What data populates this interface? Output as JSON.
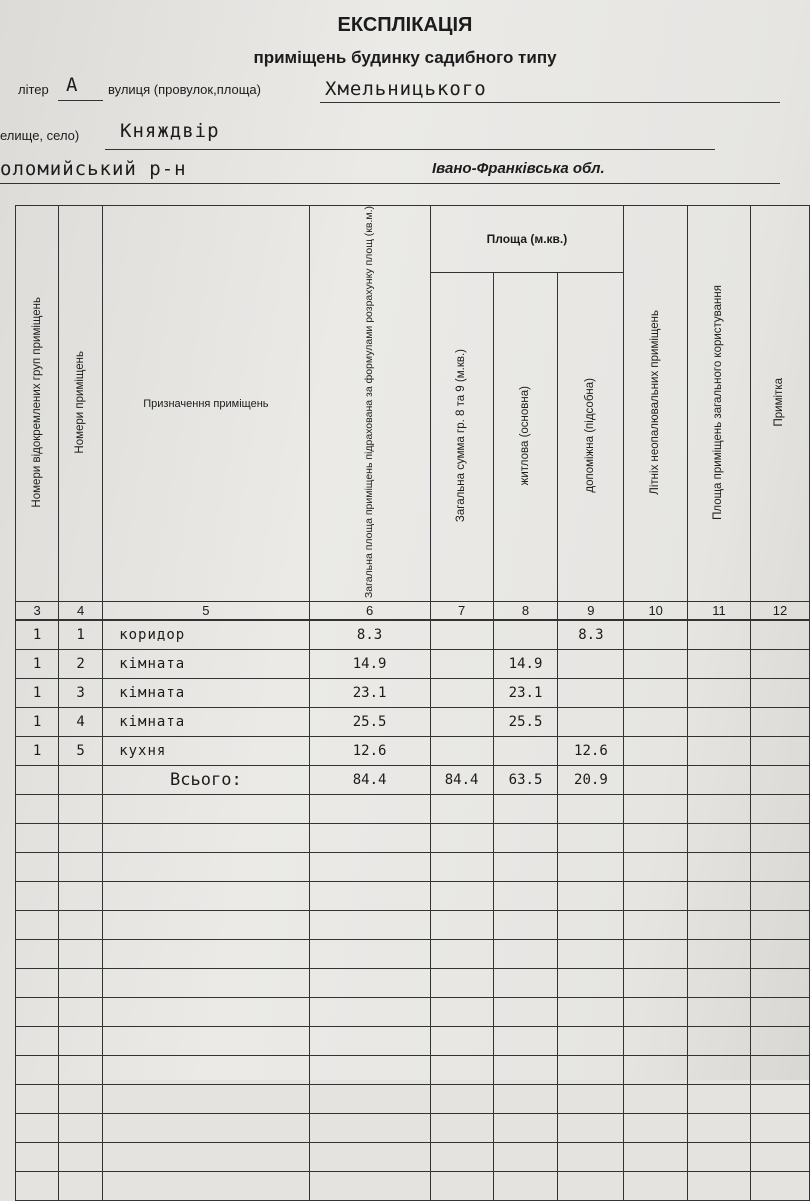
{
  "header": {
    "title": "ЕКСПЛІКАЦІЯ",
    "subtitle": "приміщень будинку садибного типу",
    "liter_label": "літер",
    "liter_value": "А",
    "street_label": "вулиця (провулок,площа)",
    "street_value": "Хмельницького",
    "settlement_label": "елище, село)",
    "settlement_value": "Княждвір",
    "district_value": "оломийський р-н",
    "region": "Івано-Франківська обл."
  },
  "table": {
    "headers": {
      "group_numbers": "Номери відокремлених груп приміщень",
      "room_numbers": "Номери приміщень",
      "purpose": "Призначення приміщень",
      "total_area": "Загальна площа приміщень підрахована за формулами розрахунку площ (кв.м.)",
      "area_group": "Площа (м.кв.)",
      "sum_8_9": "Загальна сумма гр. 8 та 9 (м.кв.)",
      "living": "житлова (основна)",
      "auxiliary": "допоміжна (підсобна)",
      "summer": "Літніх неопалювальних приміщень",
      "common": "Площа приміщень загального користування",
      "note": "Примітка"
    },
    "column_numbers": [
      "3",
      "4",
      "5",
      "6",
      "7",
      "8",
      "9",
      "10",
      "11",
      "12"
    ],
    "rows": [
      {
        "group": "1",
        "room": "1",
        "purpose": "коридор",
        "total": "8.3",
        "sum": "",
        "living": "",
        "aux": "8.3"
      },
      {
        "group": "1",
        "room": "2",
        "purpose": "кімната",
        "total": "14.9",
        "sum": "",
        "living": "14.9",
        "aux": ""
      },
      {
        "group": "1",
        "room": "3",
        "purpose": "кімната",
        "total": "23.1",
        "sum": "",
        "living": "23.1",
        "aux": ""
      },
      {
        "group": "1",
        "room": "4",
        "purpose": "кімната",
        "total": "25.5",
        "sum": "",
        "living": "25.5",
        "aux": ""
      },
      {
        "group": "1",
        "room": "5",
        "purpose": "кухня",
        "total": "12.6",
        "sum": "",
        "living": "",
        "aux": "12.6"
      }
    ],
    "totals": {
      "label": "Всього:",
      "total": "84.4",
      "sum": "84.4",
      "living": "63.5",
      "aux": "20.9"
    }
  }
}
